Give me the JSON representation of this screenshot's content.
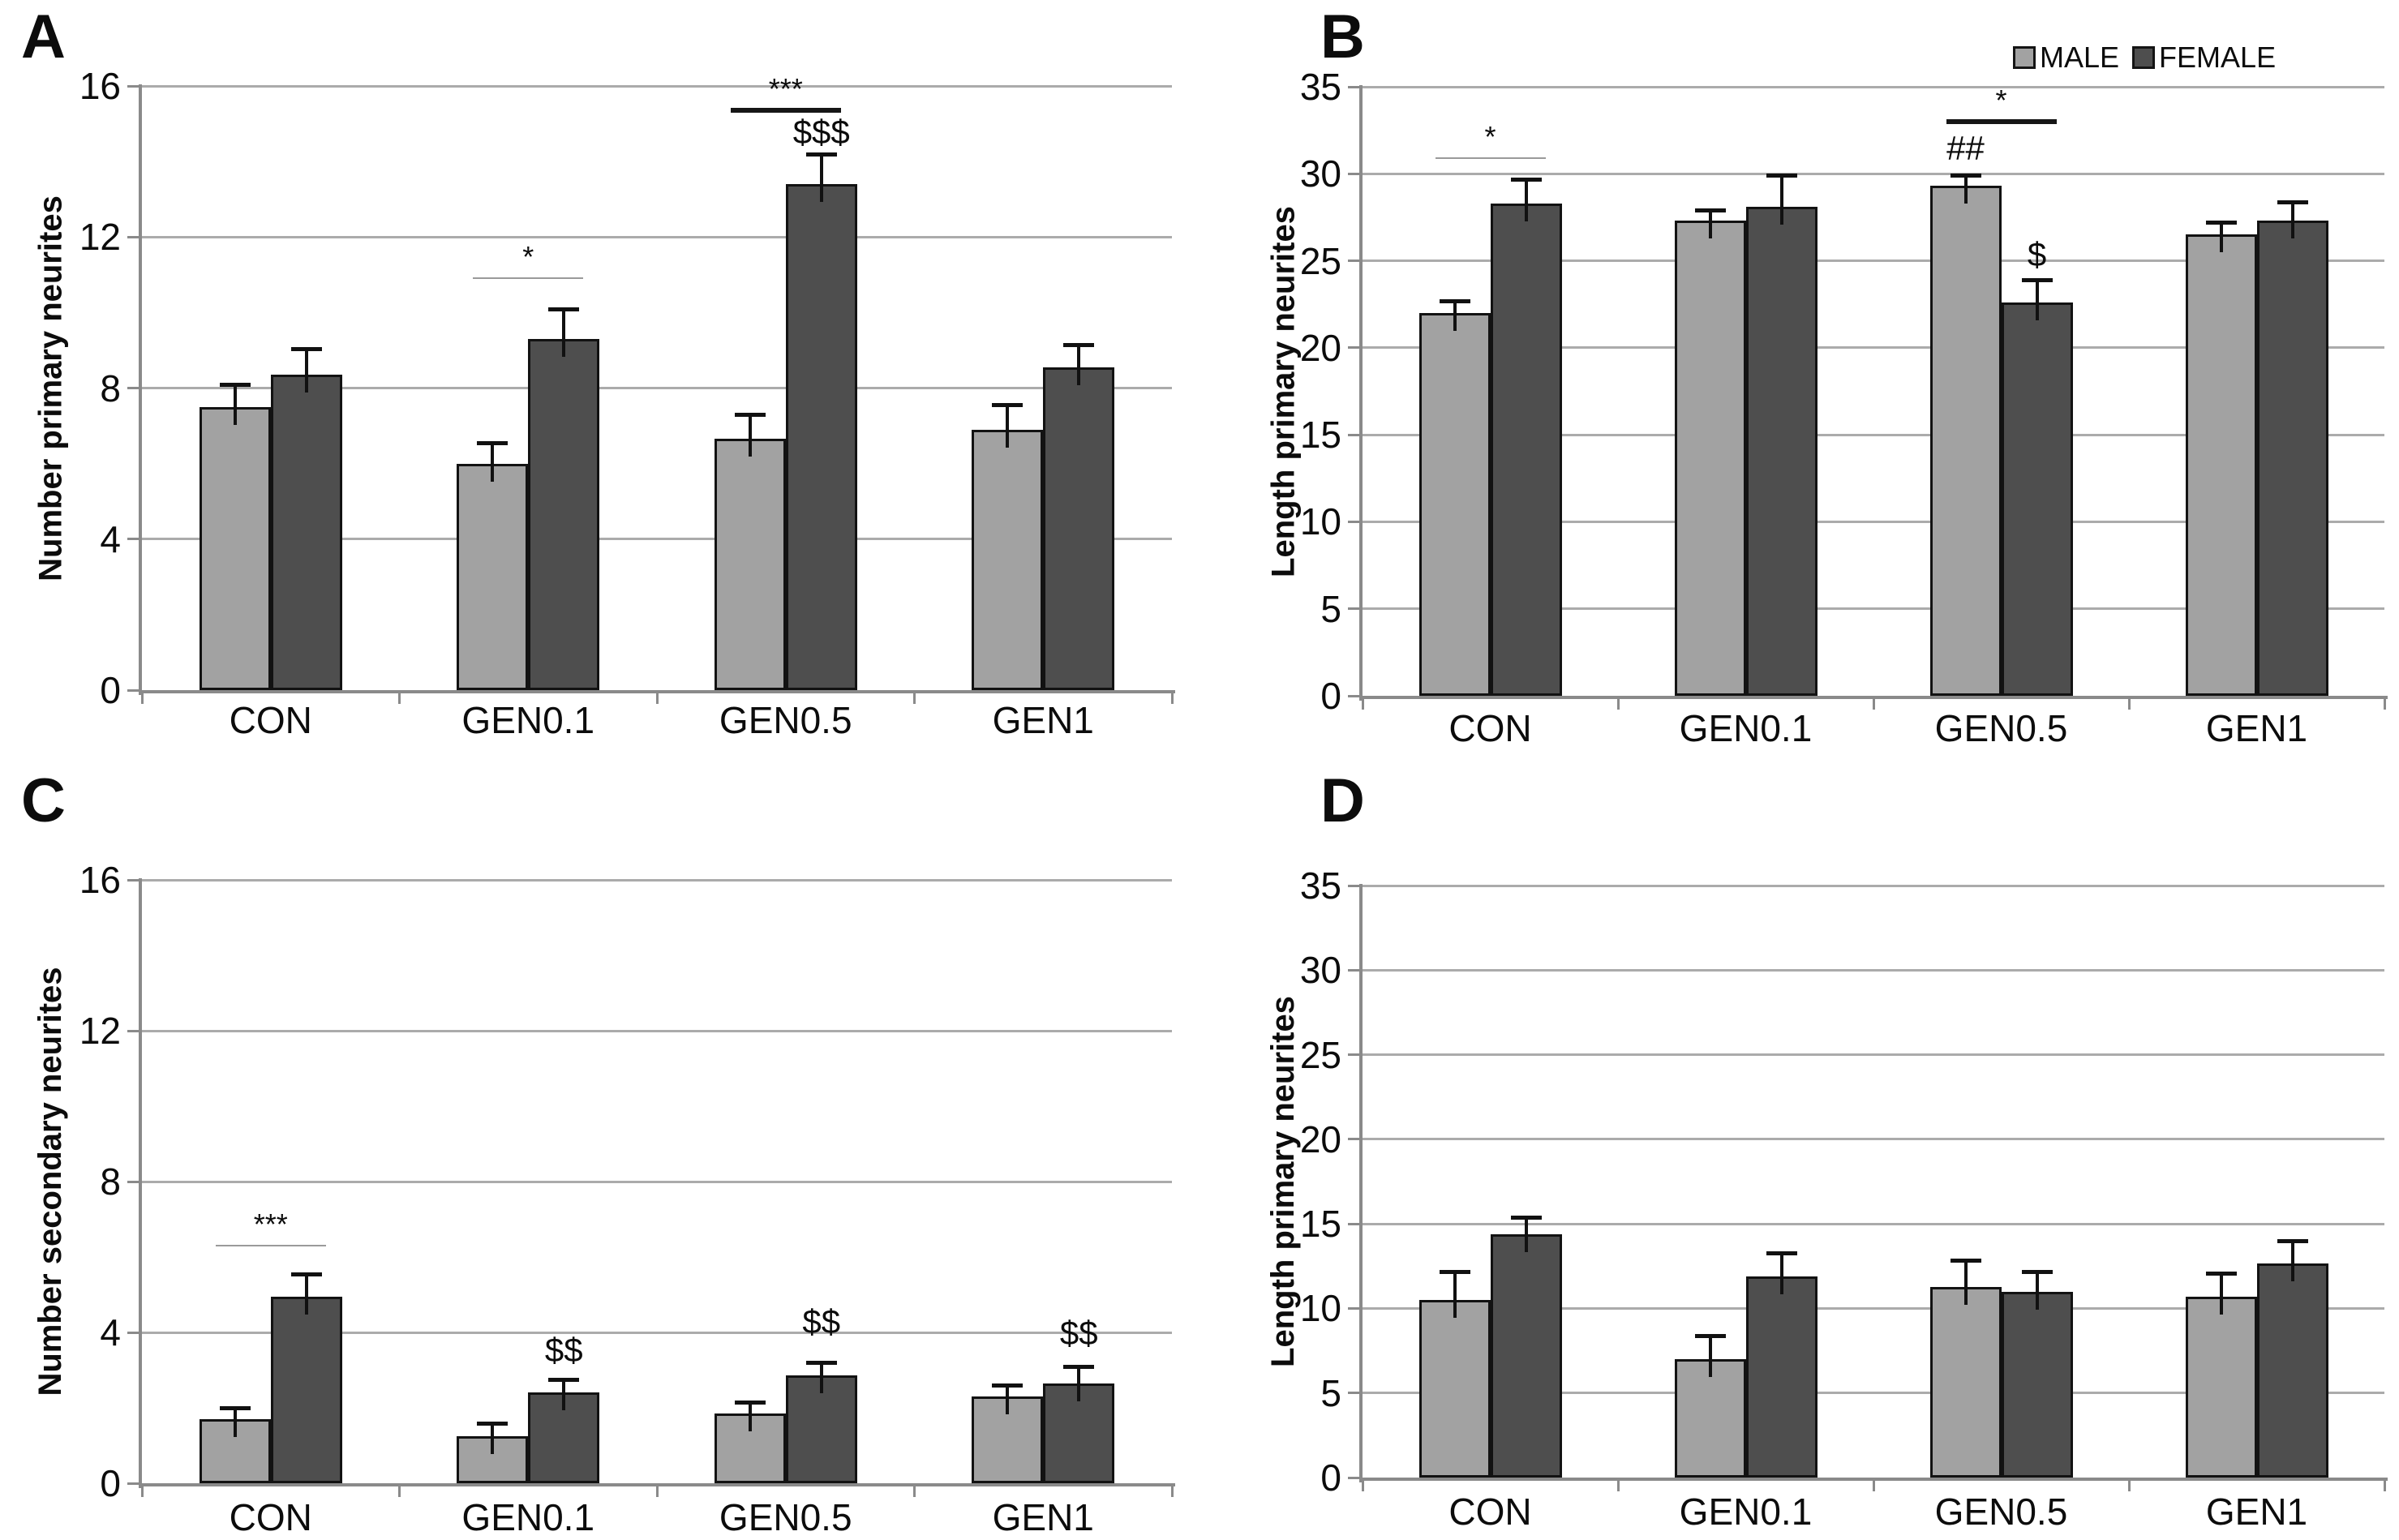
{
  "figure": {
    "legend": {
      "male_label": "MALE",
      "female_label": "FEMALE"
    },
    "colors": {
      "male_fill": "#a2a2a2",
      "female_fill": "#4e4e4e",
      "bar_border": "#121212",
      "gridline": "#ababab",
      "axis": "#8a8a8a",
      "error_bar": "#111111",
      "sig_thin_line": "#9a9a9a",
      "sig_thick_line": "#161616"
    }
  },
  "chart_data": [
    {
      "panel_label": "A",
      "type": "bar",
      "title": "",
      "xlabel": "",
      "ylabel": "Number primary neurites",
      "ylim": [
        0,
        16
      ],
      "yticks": [
        0,
        4,
        8,
        12,
        16
      ],
      "grid": true,
      "legend": false,
      "categories": [
        "CON",
        "GEN0.1",
        "GEN0.5",
        "GEN1"
      ],
      "series": [
        {
          "name": "MALE",
          "values": [
            7.5,
            6.0,
            6.65,
            6.9
          ],
          "errors": [
            0.6,
            0.55,
            0.65,
            0.65
          ]
        },
        {
          "name": "FEMALE",
          "values": [
            8.35,
            9.3,
            13.4,
            8.55
          ],
          "errors": [
            0.7,
            0.8,
            0.8,
            0.6
          ]
        }
      ],
      "annotations": [
        {
          "kind": "bracket",
          "category": 1,
          "label": "*",
          "line_y": 10.9,
          "style": "thin"
        },
        {
          "kind": "bracket",
          "category": 2,
          "label": "***",
          "line_y": 15.35,
          "style": "thick"
        },
        {
          "kind": "sym",
          "category": 2,
          "series": 1,
          "label": "$$$",
          "y": 14.75
        }
      ]
    },
    {
      "panel_label": "B",
      "type": "bar",
      "title": "",
      "xlabel": "",
      "ylabel": "Length primary neurites",
      "ylim": [
        0,
        35
      ],
      "yticks": [
        0,
        5,
        10,
        15,
        20,
        25,
        30,
        35
      ],
      "grid": true,
      "legend": true,
      "categories": [
        "CON",
        "GEN0.1",
        "GEN0.5",
        "GEN1"
      ],
      "series": [
        {
          "name": "MALE",
          "values": [
            22.0,
            27.3,
            29.3,
            26.5
          ],
          "errors": [
            0.7,
            0.6,
            0.6,
            0.7
          ]
        },
        {
          "name": "FEMALE",
          "values": [
            28.3,
            28.1,
            22.6,
            27.3
          ],
          "errors": [
            1.4,
            1.8,
            1.3,
            1.1
          ]
        }
      ],
      "annotations": [
        {
          "kind": "bracket",
          "category": 0,
          "label": "*",
          "line_y": 30.9,
          "style": "thin"
        },
        {
          "kind": "bracket",
          "category": 2,
          "label": "*",
          "line_y": 33.0,
          "style": "thick"
        },
        {
          "kind": "sym",
          "category": 2,
          "series": 0,
          "label": "##",
          "y": 31.4
        },
        {
          "kind": "sym",
          "category": 2,
          "series": 1,
          "label": "$",
          "y": 25.3
        }
      ]
    },
    {
      "panel_label": "C",
      "type": "bar",
      "title": "",
      "xlabel": "",
      "ylabel": "Number secondary neurites",
      "ylim": [
        0,
        16
      ],
      "yticks": [
        0,
        4,
        8,
        12,
        16
      ],
      "grid": true,
      "legend": false,
      "categories": [
        "CON",
        "GEN0.1",
        "GEN0.5",
        "GEN1"
      ],
      "series": [
        {
          "name": "MALE",
          "values": [
            1.7,
            1.25,
            1.85,
            2.3
          ],
          "errors": [
            0.3,
            0.35,
            0.3,
            0.3
          ]
        },
        {
          "name": "FEMALE",
          "values": [
            4.95,
            2.4,
            2.85,
            2.65
          ],
          "errors": [
            0.6,
            0.35,
            0.35,
            0.45
          ]
        }
      ],
      "annotations": [
        {
          "kind": "bracket",
          "category": 0,
          "label": "***",
          "line_y": 6.3,
          "style": "thin"
        },
        {
          "kind": "sym",
          "category": 1,
          "series": 1,
          "label": "$$",
          "y": 3.5
        },
        {
          "kind": "sym",
          "category": 2,
          "series": 1,
          "label": "$$",
          "y": 4.25
        },
        {
          "kind": "sym",
          "category": 3,
          "series": 1,
          "label": "$$",
          "y": 3.95
        }
      ]
    },
    {
      "panel_label": "D",
      "type": "bar",
      "title": "",
      "xlabel": "",
      "ylabel": "Length primary neurites",
      "ylim": [
        0,
        35
      ],
      "yticks": [
        0,
        5,
        10,
        15,
        20,
        25,
        30,
        35
      ],
      "grid": true,
      "legend": false,
      "categories": [
        "CON",
        "GEN0.1",
        "GEN0.5",
        "GEN1"
      ],
      "series": [
        {
          "name": "MALE",
          "values": [
            10.5,
            7.0,
            11.25,
            10.7
          ],
          "errors": [
            1.7,
            1.4,
            1.6,
            1.4
          ]
        },
        {
          "name": "FEMALE",
          "values": [
            14.4,
            11.9,
            11.0,
            12.65
          ],
          "errors": [
            1.0,
            1.4,
            1.2,
            1.35
          ]
        }
      ],
      "annotations": []
    }
  ]
}
